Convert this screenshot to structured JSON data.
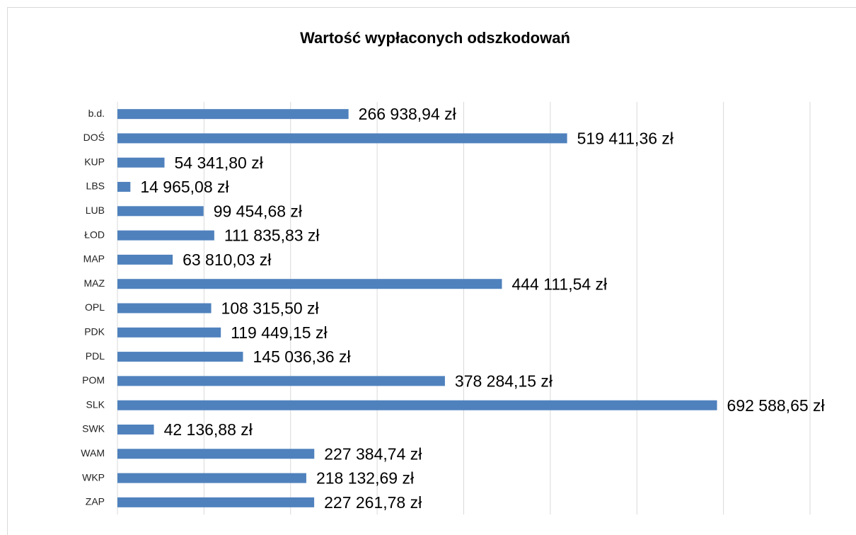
{
  "chart_data": {
    "type": "bar",
    "orientation": "horizontal",
    "title": "Wartość wypłaconych odszkodowań",
    "categories": [
      "b.d.",
      "DOŚ",
      "KUP",
      "LBS",
      "LUB",
      "ŁOD",
      "MAP",
      "MAZ",
      "OPL",
      "PDK",
      "PDL",
      "POM",
      "SLK",
      "SWK",
      "WAM",
      "WKP",
      "ZAP"
    ],
    "values": [
      266938.94,
      519411.36,
      54341.8,
      14965.08,
      99454.68,
      111835.83,
      63810.03,
      444111.54,
      108315.5,
      119449.15,
      145036.36,
      378284.15,
      692588.65,
      42136.88,
      227384.74,
      218132.69,
      227261.78
    ],
    "value_labels": [
      "266 938,94 zł",
      "519 411,36 zł",
      "54 341,80 zł",
      "14 965,08 zł",
      "99 454,68 zł",
      "111 835,83 zł",
      "63 810,03 zł",
      "444 111,54 zł",
      "108 315,50 zł",
      "119 449,15 zł",
      "145 036,36 zł",
      "378 284,15 zł",
      "692 588,65 zł",
      "42 136,88 zł",
      "227 384,74 zł",
      "218 132,69 zł",
      "227 261,78 zł"
    ],
    "color": "#4f81bd",
    "xlim": [
      0,
      800000
    ],
    "xticks": [
      0,
      100000,
      200000,
      300000,
      400000,
      500000,
      600000,
      700000,
      800000
    ],
    "grid": true
  }
}
